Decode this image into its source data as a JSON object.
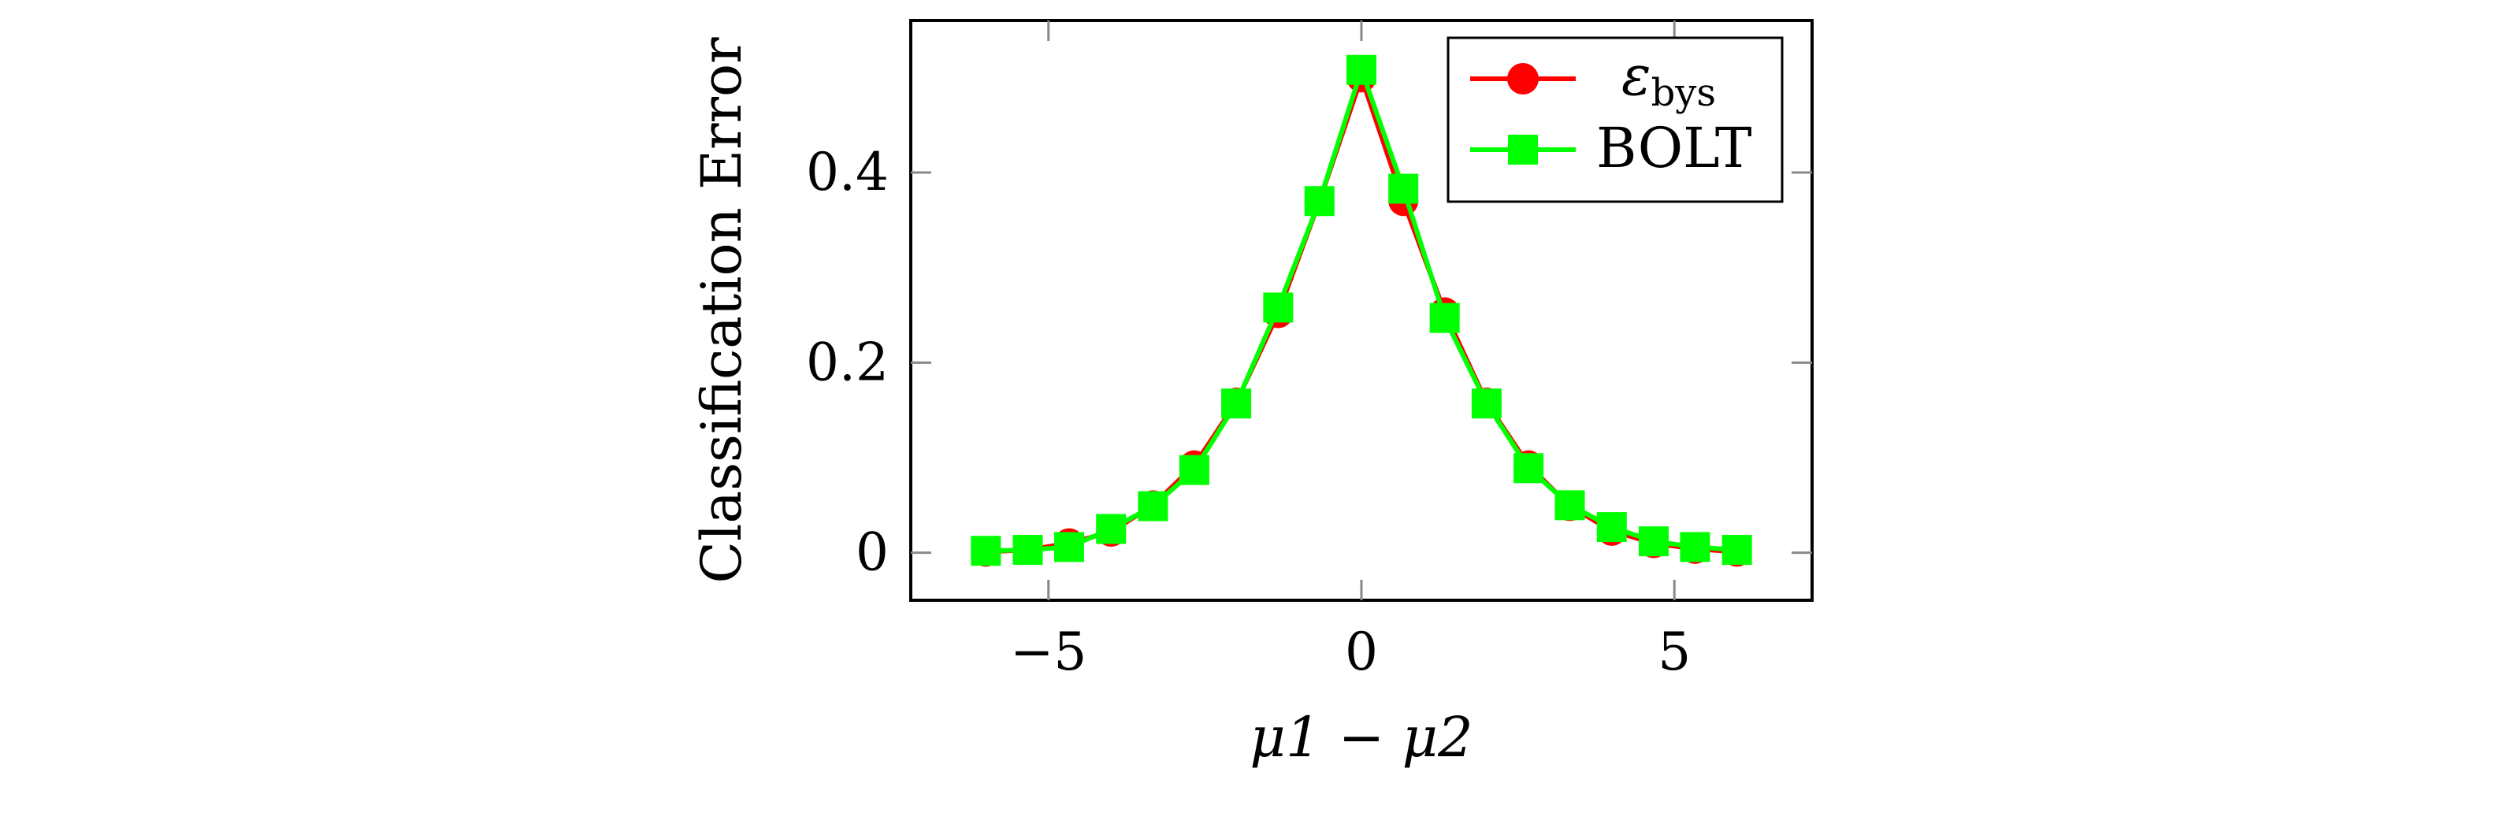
{
  "chart_data": {
    "type": "line",
    "title": "",
    "xlabel": "μ1 − μ2",
    "ylabel": "Classification Error",
    "xlim": [
      -7.2,
      7.2
    ],
    "ylim": [
      -0.05,
      0.56
    ],
    "xticks": [
      -5,
      0,
      5
    ],
    "xtick_labels": [
      "−5",
      "0",
      "5"
    ],
    "yticks": [
      0,
      0.2,
      0.4
    ],
    "ytick_labels": [
      "0",
      "0.2",
      "0.4"
    ],
    "grid": false,
    "legend_position": "top-right",
    "x": [
      -6,
      -5.33,
      -4.67,
      -4,
      -3.33,
      -2.67,
      -2,
      -1.33,
      -0.67,
      0,
      0.67,
      1.33,
      2,
      2.67,
      3.33,
      4,
      4.67,
      5.33,
      6
    ],
    "series": [
      {
        "name": "ε",
        "name_subscript": "bys",
        "color": "#ff0000",
        "marker": "circle",
        "values": [
          0.001,
          0.003,
          0.01,
          0.022,
          0.05,
          0.092,
          0.158,
          0.252,
          0.37,
          0.5,
          0.37,
          0.253,
          0.158,
          0.092,
          0.049,
          0.023,
          0.01,
          0.004,
          0.001
        ]
      },
      {
        "name": "BOLT",
        "color": "#00ff00",
        "marker": "square",
        "values": [
          0.002,
          0.003,
          0.006,
          0.025,
          0.049,
          0.087,
          0.157,
          0.258,
          0.37,
          0.508,
          0.383,
          0.247,
          0.157,
          0.089,
          0.05,
          0.027,
          0.012,
          0.006,
          0.003
        ]
      }
    ]
  }
}
